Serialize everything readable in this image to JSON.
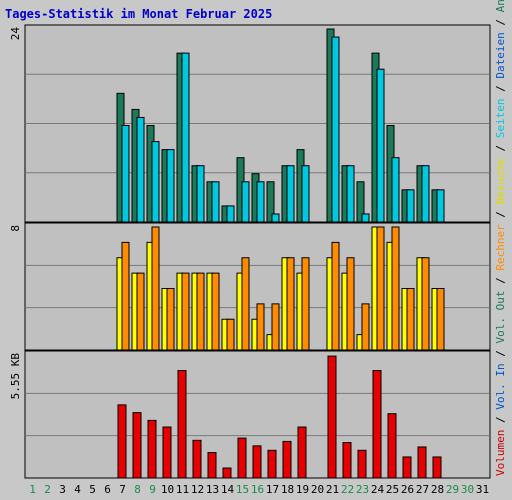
{
  "title": "Tages-Statistik im Monat Februar 2025",
  "colors": {
    "background": "#c8c8c8",
    "plot_bg": "#c0c0c0",
    "title": "#0000cc",
    "hits": "#1a7a5a",
    "files": "#00c8e0",
    "pages": "#00d0e8",
    "visits": "#ffff00",
    "sites": "#ff8c00",
    "kbytes": "#e80000",
    "day_black": "#000000",
    "day_weekend": "#1a8a4a"
  },
  "right_legend": [
    {
      "text": "Volumen",
      "color": "#cc0000"
    },
    {
      "text": " / ",
      "color": "#000000"
    },
    {
      "text": "Vol. In",
      "color": "#0055cc"
    },
    {
      "text": " / ",
      "color": "#000000"
    },
    {
      "text": "Vol. Out",
      "color": "#1a7a5a"
    },
    {
      "text": " / ",
      "color": "#000000"
    },
    {
      "text": "Rechner",
      "color": "#ff8c00"
    },
    {
      "text": " / ",
      "color": "#000000"
    },
    {
      "text": "Besuche",
      "color": "#dddd00"
    },
    {
      "text": " / ",
      "color": "#000000"
    },
    {
      "text": "Seiten",
      "color": "#00c8e0"
    },
    {
      "text": " / ",
      "color": "#000000"
    },
    {
      "text": "Dateien",
      "color": "#0055cc"
    },
    {
      "text": " / ",
      "color": "#000000"
    },
    {
      "text": "Anfragen",
      "color": "#1a7a5a"
    }
  ],
  "chart_data": [
    {
      "type": "bar",
      "panel": "top",
      "ymax_label": "24",
      "ylim": [
        0,
        24
      ],
      "x": [
        1,
        2,
        3,
        4,
        5,
        6,
        7,
        8,
        9,
        10,
        11,
        12,
        13,
        14,
        15,
        16,
        17,
        18,
        19,
        20,
        21,
        22,
        23,
        24,
        25,
        26,
        27,
        28,
        29,
        30,
        31
      ],
      "series": [
        {
          "name": "Anfragen",
          "values": [
            0,
            0,
            0,
            0,
            0,
            0,
            16,
            14,
            12,
            9,
            21,
            7,
            5,
            2,
            8,
            6,
            5,
            7,
            9,
            0,
            24,
            7,
            5,
            21,
            12,
            4,
            7,
            4,
            0,
            0,
            0
          ]
        },
        {
          "name": "Dateien",
          "values": [
            0,
            0,
            0,
            0,
            0,
            0,
            12,
            13,
            10,
            9,
            21,
            7,
            5,
            2,
            5,
            5,
            1,
            7,
            7,
            0,
            23,
            7,
            1,
            19,
            8,
            4,
            7,
            4,
            0,
            0,
            0
          ]
        }
      ]
    },
    {
      "type": "bar",
      "panel": "middle",
      "ymax_label": "8",
      "ylim": [
        0,
        8
      ],
      "x": [
        1,
        2,
        3,
        4,
        5,
        6,
        7,
        8,
        9,
        10,
        11,
        12,
        13,
        14,
        15,
        16,
        17,
        18,
        19,
        20,
        21,
        22,
        23,
        24,
        25,
        26,
        27,
        28,
        29,
        30,
        31
      ],
      "series": [
        {
          "name": "Besuche",
          "values": [
            0,
            0,
            0,
            0,
            0,
            0,
            6,
            5,
            7,
            4,
            5,
            5,
            5,
            2,
            5,
            2,
            1,
            6,
            5,
            0,
            6,
            5,
            1,
            8,
            7,
            4,
            6,
            4,
            0,
            0,
            0
          ]
        },
        {
          "name": "Rechner",
          "values": [
            0,
            0,
            0,
            0,
            0,
            0,
            7,
            5,
            8,
            4,
            5,
            5,
            5,
            2,
            6,
            3,
            3,
            6,
            6,
            0,
            7,
            6,
            3,
            8,
            8,
            4,
            6,
            4,
            0,
            0,
            0
          ]
        }
      ]
    },
    {
      "type": "bar",
      "panel": "bottom",
      "ymax_label": "5.55 KB",
      "ylim": [
        0,
        5.55
      ],
      "x": [
        1,
        2,
        3,
        4,
        5,
        6,
        7,
        8,
        9,
        10,
        11,
        12,
        13,
        14,
        15,
        16,
        17,
        18,
        19,
        20,
        21,
        22,
        23,
        24,
        25,
        26,
        27,
        28,
        29,
        30,
        31
      ],
      "series": [
        {
          "name": "Volumen",
          "values": [
            0,
            0,
            0,
            0,
            0,
            0,
            3.3,
            2.95,
            2.6,
            2.3,
            4.85,
            1.7,
            1.15,
            0.45,
            1.8,
            1.45,
            1.25,
            1.65,
            2.3,
            0,
            5.5,
            1.6,
            1.25,
            4.85,
            2.9,
            0.95,
            1.4,
            0.95,
            0,
            0,
            0
          ]
        }
      ]
    }
  ],
  "day_labels": [
    "1",
    "2",
    "3",
    "4",
    "5",
    "6",
    "7",
    "8",
    "9",
    "10",
    "11",
    "12",
    "13",
    "14",
    "15",
    "16",
    "17",
    "18",
    "19",
    "20",
    "21",
    "22",
    "23",
    "24",
    "25",
    "26",
    "27",
    "28",
    "29",
    "30",
    "31"
  ],
  "day_label_weekend": [
    true,
    true,
    false,
    false,
    false,
    false,
    false,
    true,
    true,
    false,
    false,
    false,
    false,
    false,
    true,
    true,
    false,
    false,
    false,
    false,
    false,
    true,
    true,
    false,
    false,
    false,
    false,
    false,
    true,
    true,
    false
  ]
}
